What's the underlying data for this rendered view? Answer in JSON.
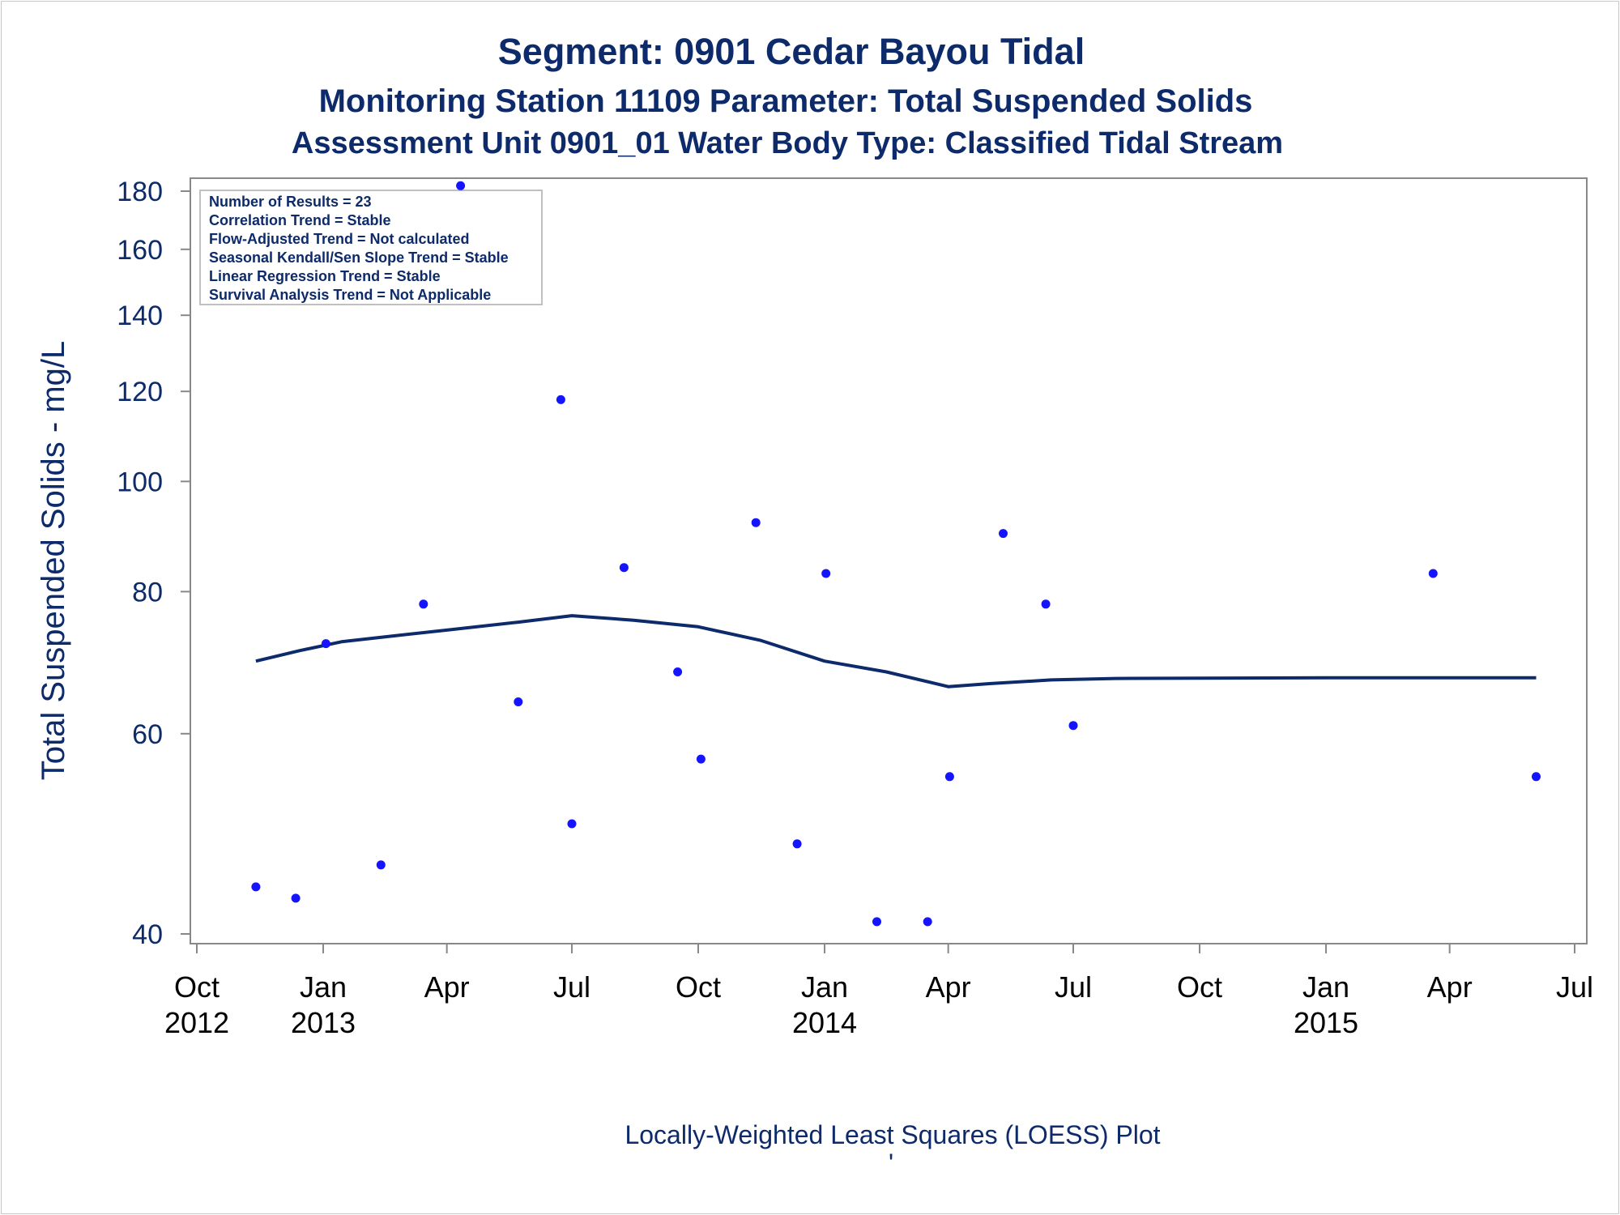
{
  "titles": {
    "line1": "Segment: 0901  Cedar Bayou Tidal",
    "line2": "Monitoring Station 11109 Parameter: Total Suspended Solids",
    "line3": "Assessment Unit 0901_01   Water Body Type: Classified Tidal Stream"
  },
  "footnote": "Locally-Weighted Least Squares (LOESS) Plot",
  "footmark": "'",
  "stats": [
    "Number of Results = 23",
    "Correlation Trend = Stable",
    "Flow-Adjusted Trend = Not calculated",
    "Seasonal Kendall/Sen Slope Trend = Stable",
    "Linear Regression Trend = Stable",
    "Survival Analysis Trend = Not Applicable"
  ],
  "colors": {
    "points": "#1414ff",
    "loess": "#0d2a6b",
    "text": "#0d2a6b",
    "axis": "#888888"
  },
  "chart_data": {
    "type": "scatter",
    "ylabel": "Total Suspended Solids - mg/L",
    "xlabel": "",
    "y_scale": "log",
    "ylim": [
      39,
      185
    ],
    "xlim": [
      "2012-10-01",
      "2015-07-01"
    ],
    "yticks": [
      40,
      60,
      80,
      100,
      120,
      140,
      160,
      180
    ],
    "xticks": [
      {
        "date": "2012-10-01",
        "line1": "Oct",
        "line2": "2012"
      },
      {
        "date": "2013-01-01",
        "line1": "Jan",
        "line2": "2013"
      },
      {
        "date": "2013-04-01",
        "line1": "Apr",
        "line2": ""
      },
      {
        "date": "2013-07-01",
        "line1": "Jul",
        "line2": ""
      },
      {
        "date": "2013-10-01",
        "line1": "Oct",
        "line2": ""
      },
      {
        "date": "2014-01-01",
        "line1": "Jan",
        "line2": "2014"
      },
      {
        "date": "2014-04-01",
        "line1": "Apr",
        "line2": ""
      },
      {
        "date": "2014-07-01",
        "line1": "Jul",
        "line2": ""
      },
      {
        "date": "2014-10-01",
        "line1": "Oct",
        "line2": ""
      },
      {
        "date": "2015-01-01",
        "line1": "Jan",
        "line2": "2015"
      },
      {
        "date": "2015-04-01",
        "line1": "Apr",
        "line2": ""
      },
      {
        "date": "2015-07-01",
        "line1": "Jul",
        "line2": ""
      }
    ],
    "points": [
      {
        "x": "2012-11-13",
        "y": 44
      },
      {
        "x": "2012-12-12",
        "y": 43
      },
      {
        "x": "2013-01-03",
        "y": 72
      },
      {
        "x": "2013-02-12",
        "y": 46
      },
      {
        "x": "2013-03-15",
        "y": 78
      },
      {
        "x": "2013-04-11",
        "y": 182
      },
      {
        "x": "2013-05-23",
        "y": 64
      },
      {
        "x": "2013-06-23",
        "y": 118
      },
      {
        "x": "2013-07-01",
        "y": 50
      },
      {
        "x": "2013-08-08",
        "y": 84
      },
      {
        "x": "2013-09-16",
        "y": 68
      },
      {
        "x": "2013-10-03",
        "y": 57
      },
      {
        "x": "2013-11-12",
        "y": 92
      },
      {
        "x": "2013-12-12",
        "y": 48
      },
      {
        "x": "2014-01-02",
        "y": 83
      },
      {
        "x": "2014-02-08",
        "y": 41
      },
      {
        "x": "2014-03-17",
        "y": 41
      },
      {
        "x": "2014-04-02",
        "y": 55
      },
      {
        "x": "2014-05-11",
        "y": 90
      },
      {
        "x": "2014-06-11",
        "y": 78
      },
      {
        "x": "2014-07-01",
        "y": 61
      },
      {
        "x": "2015-03-20",
        "y": 83
      },
      {
        "x": "2015-06-03",
        "y": 55
      }
    ],
    "loess": [
      {
        "x": "2012-11-13",
        "y": 69.5
      },
      {
        "x": "2012-12-15",
        "y": 71
      },
      {
        "x": "2013-01-15",
        "y": 72.3
      },
      {
        "x": "2013-02-15",
        "y": 73
      },
      {
        "x": "2013-04-01",
        "y": 74
      },
      {
        "x": "2013-05-23",
        "y": 75.2
      },
      {
        "x": "2013-07-01",
        "y": 76.2
      },
      {
        "x": "2013-08-15",
        "y": 75.5
      },
      {
        "x": "2013-10-01",
        "y": 74.5
      },
      {
        "x": "2013-11-15",
        "y": 72.5
      },
      {
        "x": "2014-01-01",
        "y": 69.5
      },
      {
        "x": "2014-02-15",
        "y": 68
      },
      {
        "x": "2014-04-01",
        "y": 66
      },
      {
        "x": "2014-05-01",
        "y": 66.4
      },
      {
        "x": "2014-06-15",
        "y": 66.9
      },
      {
        "x": "2014-08-01",
        "y": 67.1
      },
      {
        "x": "2015-01-01",
        "y": 67.2
      },
      {
        "x": "2015-06-03",
        "y": 67.2
      }
    ]
  }
}
